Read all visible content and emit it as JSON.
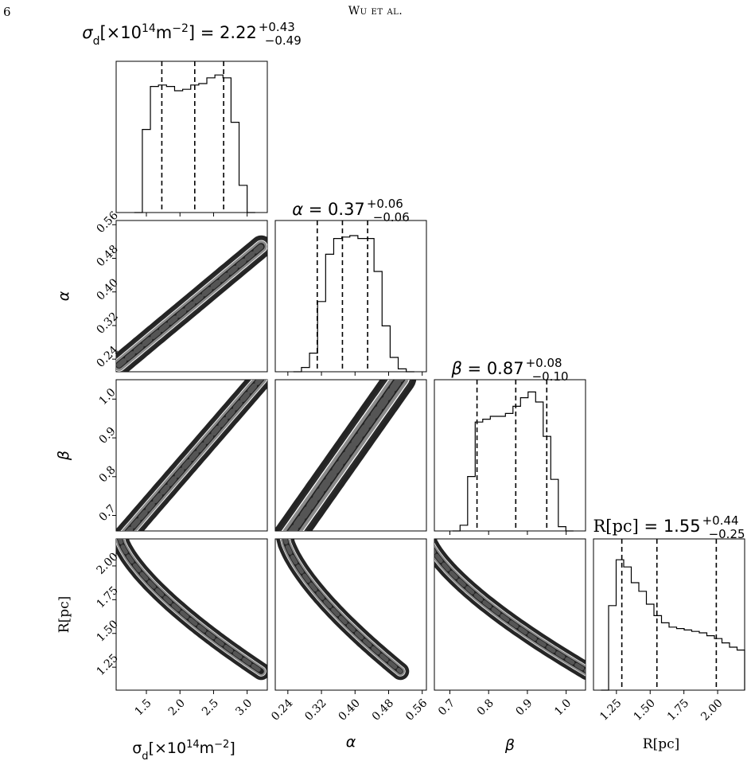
{
  "header": {
    "page_number": "6",
    "running_title": "Wu et al."
  },
  "chart_data": {
    "type": "corner",
    "parameters": [
      {
        "key": "sigma",
        "label_html": "σ<tspan class='sub' baseline-shift='sub' font-size='13'>d</tspan>[×10<tspan baseline-shift='super' font-size='13'>14</tspan>m<tspan baseline-shift='super' font-size='13'>−2</tspan>]",
        "title": "σd[×10^14m^-2] = 2.22 +0.43 −0.49",
        "median": "2.22",
        "plus": "+0.43",
        "minus": "−0.49",
        "range": [
          1.05,
          3.3
        ],
        "ticks": [
          1.5,
          2.0,
          2.5,
          3.0
        ],
        "tick_labels": [
          "1.5",
          "2.0",
          "2.5",
          "3.0"
        ],
        "quantiles": [
          1.73,
          2.22,
          2.65
        ]
      },
      {
        "key": "alpha",
        "label": "α",
        "title": "α = 0.37 +0.06 −0.06",
        "median": "0.37",
        "plus": "+0.06",
        "minus": "−0.06",
        "range": [
          0.21,
          0.57
        ],
        "ticks": [
          0.24,
          0.32,
          0.4,
          0.48,
          0.56
        ],
        "tick_labels": [
          "0.24",
          "0.32",
          "0.40",
          "0.48",
          "0.56"
        ],
        "quantiles": [
          0.31,
          0.37,
          0.43
        ]
      },
      {
        "key": "beta",
        "label": "β",
        "title": "β = 0.87 +0.08 −0.10",
        "median": "0.87",
        "plus": "+0.08",
        "minus": "−0.10",
        "range": [
          0.66,
          1.05
        ],
        "ticks": [
          0.7,
          0.8,
          0.9,
          1.0
        ],
        "tick_labels": [
          "0.7",
          "0.8",
          "0.9",
          "1.0"
        ],
        "quantiles": [
          0.77,
          0.87,
          0.95
        ]
      },
      {
        "key": "R",
        "label": "R[pc]",
        "title": "R[pc] = 1.55 +0.44 −0.25",
        "median": "1.55",
        "plus": "+0.44",
        "minus": "−0.25",
        "range": [
          1.08,
          2.2
        ],
        "ticks": [
          1.25,
          1.5,
          1.75,
          2.0
        ],
        "tick_labels": [
          "1.25",
          "1.50",
          "1.75",
          "2.00"
        ],
        "quantiles": [
          1.29,
          1.55,
          1.99
        ]
      }
    ],
    "histograms": {
      "sigma": [
        0.0,
        0.58,
        0.88,
        0.89,
        0.88,
        0.85,
        0.86,
        0.89,
        0.9,
        0.94,
        0.96,
        0.94,
        0.63,
        0.19,
        0.0
      ],
      "alpha": [
        0.0,
        0.03,
        0.13,
        0.49,
        0.82,
        0.93,
        0.94,
        0.95,
        0.93,
        0.93,
        0.7,
        0.32,
        0.1,
        0.02,
        0.0
      ],
      "beta": [
        0.0,
        0.04,
        0.38,
        0.76,
        0.78,
        0.8,
        0.8,
        0.82,
        0.87,
        0.93,
        0.97,
        0.9,
        0.66,
        0.36,
        0.03,
        0.0
      ],
      "R": [
        0.0,
        0.59,
        0.91,
        0.86,
        0.75,
        0.69,
        0.6,
        0.52,
        0.47,
        0.44,
        0.43,
        0.42,
        0.41,
        0.4,
        0.38,
        0.36,
        0.33,
        0.3,
        0.28
      ]
    },
    "x_axis_titles": [
      "σd[×10^14m^-2]",
      "α",
      "β",
      "R[pc]"
    ],
    "y_axis_titles": [
      "α",
      "β",
      "R[pc]"
    ]
  }
}
